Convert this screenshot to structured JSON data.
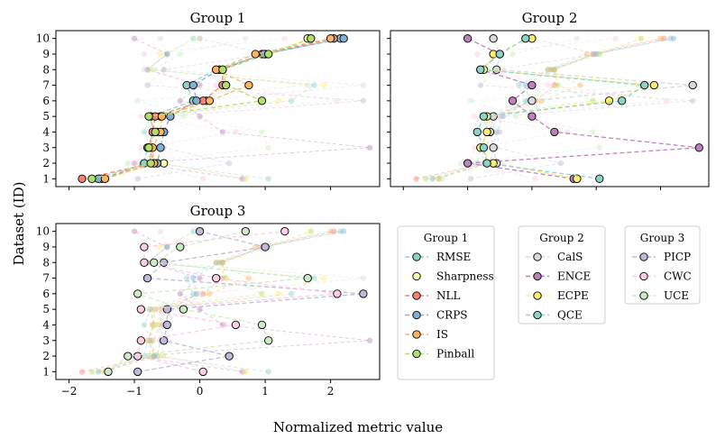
{
  "chart_data": {
    "type": "line",
    "xlabel": "Normalized metric value",
    "ylabel": "Dataset (ID)",
    "xlim": [
      -2.2,
      2.75
    ],
    "ylim": [
      0.5,
      10.5
    ],
    "x_ticks": [
      -2,
      -1,
      0,
      1,
      2
    ],
    "y_ticks": [
      1,
      2,
      3,
      4,
      5,
      6,
      7,
      8,
      9,
      10
    ],
    "datasets": [
      1,
      2,
      3,
      4,
      5,
      6,
      7,
      8,
      9,
      10
    ],
    "metrics": [
      {
        "name": "RMSE",
        "group": "Group 1",
        "color": "#8dd3c7",
        "values": [
          -1.45,
          -0.85,
          -0.8,
          -0.7,
          -0.75,
          -0.1,
          -0.2,
          0.25,
          1.0,
          2.15
        ]
      },
      {
        "name": "Sharpness",
        "group": "Group 1",
        "color": "#ffffb3",
        "values": [
          -1.5,
          -0.55,
          -0.75,
          -0.65,
          -0.6,
          0.1,
          0.4,
          0.3,
          1.0,
          1.65
        ]
      },
      {
        "name": "NLL",
        "group": "Group 1",
        "color": "#fb8072",
        "values": [
          -1.8,
          -0.7,
          -0.78,
          -0.72,
          -0.68,
          0.05,
          0.35,
          0.35,
          0.95,
          2.05
        ]
      },
      {
        "name": "CRPS",
        "group": "Group 1",
        "color": "#80b1d3",
        "values": [
          -1.55,
          -0.65,
          -0.6,
          -0.55,
          -0.45,
          -0.05,
          -0.1,
          0.3,
          0.98,
          2.2
        ]
      },
      {
        "name": "IS",
        "group": "Group 1",
        "color": "#fdb462",
        "values": [
          -1.45,
          -0.7,
          -0.72,
          -0.6,
          -0.58,
          0.15,
          0.75,
          0.25,
          0.85,
          2.0
        ]
      },
      {
        "name": "Pinball",
        "group": "Group 1",
        "color": "#b3de69",
        "values": [
          -1.65,
          -0.75,
          -0.78,
          -0.68,
          -0.78,
          0.95,
          0.4,
          0.35,
          1.05,
          1.7
        ]
      },
      {
        "name": "CalS",
        "group": "Group 2",
        "color": "#d9d9d9",
        "values": [
          0.7,
          -0.55,
          -0.6,
          -0.65,
          -0.6,
          0.0,
          2.5,
          -0.55,
          -0.5,
          -0.6
        ]
      },
      {
        "name": "ENCE",
        "group": "Group 2",
        "color": "#bc80bd",
        "values": [
          0.65,
          -1.0,
          2.6,
          0.35,
          0.0,
          -0.3,
          0.0,
          -0.8,
          -0.5,
          -1.0
        ]
      },
      {
        "name": "ECPE",
        "group": "Group 2",
        "color": "#ffed6f",
        "values": [
          0.7,
          -0.6,
          -0.8,
          -0.7,
          -0.7,
          1.2,
          1.9,
          -0.75,
          -0.6,
          0.0
        ]
      },
      {
        "name": "QCE",
        "group": "Group 2",
        "color": "#8dd3c7",
        "values": [
          1.05,
          -0.7,
          -0.75,
          -0.85,
          -0.75,
          1.4,
          1.75,
          -0.8,
          -0.5,
          -0.1
        ]
      },
      {
        "name": "PICP",
        "group": "Group 3",
        "color": "#bebada",
        "values": [
          -0.95,
          0.45,
          -0.55,
          -0.5,
          -0.5,
          2.5,
          -0.8,
          -0.55,
          1.0,
          0.0
        ]
      },
      {
        "name": "CWC",
        "group": "Group 3",
        "color": "#fccde5",
        "values": [
          0.05,
          -0.95,
          -0.9,
          0.55,
          -0.9,
          2.1,
          0.25,
          -0.85,
          -0.85,
          1.3
        ]
      },
      {
        "name": "UCE",
        "group": "Group 3",
        "color": "#ccebc5",
        "values": [
          -1.4,
          -1.1,
          1.05,
          0.95,
          -0.25,
          -0.95,
          1.65,
          -0.7,
          -0.3,
          0.7
        ]
      }
    ],
    "panels": [
      {
        "title": "Group 1",
        "highlight_group": "Group 1"
      },
      {
        "title": "Group 2",
        "highlight_group": "Group 2"
      },
      {
        "title": "Group 3",
        "highlight_group": "Group 3"
      }
    ],
    "legend": [
      {
        "title": "Group 1",
        "items": [
          "RMSE",
          "Sharpness",
          "NLL",
          "CRPS",
          "IS",
          "Pinball"
        ]
      },
      {
        "title": "Group 2",
        "items": [
          "CalS",
          "ENCE",
          "ECPE",
          "QCE"
        ]
      },
      {
        "title": "Group 3",
        "items": [
          "PICP",
          "CWC",
          "UCE"
        ]
      }
    ]
  }
}
